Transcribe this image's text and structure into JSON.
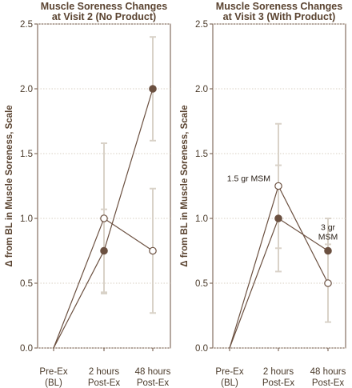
{
  "chart_data": [
    {
      "type": "line",
      "title_lines": [
        "Muscle Soreness Changes",
        "at Visit 2 (No Product)"
      ],
      "ylabel": "Δ from BL in Muscle Soreness, Scale",
      "ylim": [
        0,
        2.5
      ],
      "yticks": [
        "0.0",
        "0.5",
        "1.0",
        "1.5",
        "2.0",
        "2.5"
      ],
      "grid": true,
      "categories": [
        [
          "Pre-Ex",
          "(BL)"
        ],
        [
          "2 hours",
          "Post-Ex"
        ],
        [
          "48 hours",
          "Post-Ex"
        ]
      ],
      "series": [
        {
          "marker": "filled",
          "color": "#6b5040",
          "values": [
            0,
            0.75,
            2.0
          ],
          "ci_low": [
            null,
            0.43,
            1.6
          ],
          "ci_high": [
            null,
            1.07,
            2.4
          ]
        },
        {
          "marker": "open",
          "color": "#6b5040",
          "values": [
            0,
            1.0,
            0.75
          ],
          "ci_low": [
            null,
            0.42,
            0.27
          ],
          "ci_high": [
            null,
            1.58,
            1.23
          ]
        }
      ],
      "annotations": []
    },
    {
      "type": "line",
      "title_lines": [
        "Muscle Soreness Changes",
        "at Visit 3 (With Product)"
      ],
      "ylabel": "Δ from BL in Muscle Soreness, Scale",
      "ylim": [
        0,
        2.5
      ],
      "yticks": [
        "0.0",
        "0.5",
        "1.0",
        "1.5",
        "2.0",
        "2.5"
      ],
      "grid": true,
      "categories": [
        [
          "Pre-Ex",
          "(BL)"
        ],
        [
          "2 hours",
          "Post-Ex"
        ],
        [
          "48 hours",
          "Post-Ex"
        ]
      ],
      "series": [
        {
          "marker": "open",
          "color": "#6b5040",
          "values": [
            0,
            1.25,
            0.5
          ],
          "ci_low": [
            null,
            0.77,
            0.2
          ],
          "ci_high": [
            null,
            1.73,
            0.8
          ]
        },
        {
          "marker": "filled",
          "color": "#6b5040",
          "values": [
            0,
            1.0,
            0.75
          ],
          "ci_low": [
            null,
            0.59,
            0.5
          ],
          "ci_high": [
            null,
            1.41,
            1.0
          ]
        }
      ],
      "annotations": [
        {
          "lines": [
            "1.5 gr MSM"
          ],
          "anchor_x": 1,
          "anchor_y": 1.25,
          "placement": "left"
        },
        {
          "lines": [
            "3 gr",
            "MSM"
          ],
          "anchor_x": 2,
          "anchor_y": 0.75,
          "placement": "above"
        }
      ]
    }
  ]
}
